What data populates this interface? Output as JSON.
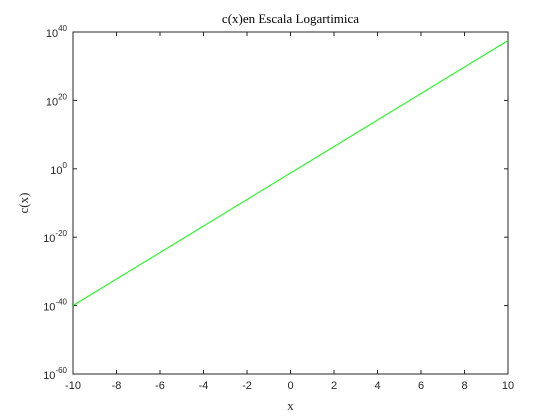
{
  "chart_data": {
    "type": "line",
    "title": "c(x)en Escala Logartimica",
    "xlabel": "x",
    "ylabel": "c(x)",
    "xlim": [
      -10,
      10
    ],
    "ylim": [
      1e-60,
      1e+40
    ],
    "yscale": "log",
    "grid": false,
    "x_ticks": [
      -10,
      -8,
      -6,
      -4,
      -2,
      0,
      2,
      4,
      6,
      8,
      10
    ],
    "y_ticks": [
      {
        "base": "10",
        "exp": "-60"
      },
      {
        "base": "10",
        "exp": "-40"
      },
      {
        "base": "10",
        "exp": "-20"
      },
      {
        "base": "10",
        "exp": "0"
      },
      {
        "base": "10",
        "exp": "20"
      },
      {
        "base": "10",
        "exp": "40"
      }
    ],
    "series": [
      {
        "color": "#00ff00",
        "x": [
          -10,
          10
        ],
        "y": [
          1e-40,
          3.16e+37
        ]
      }
    ]
  },
  "colors": {
    "axes": "#262626",
    "line": "#00ff00",
    "background": "#ffffff"
  }
}
